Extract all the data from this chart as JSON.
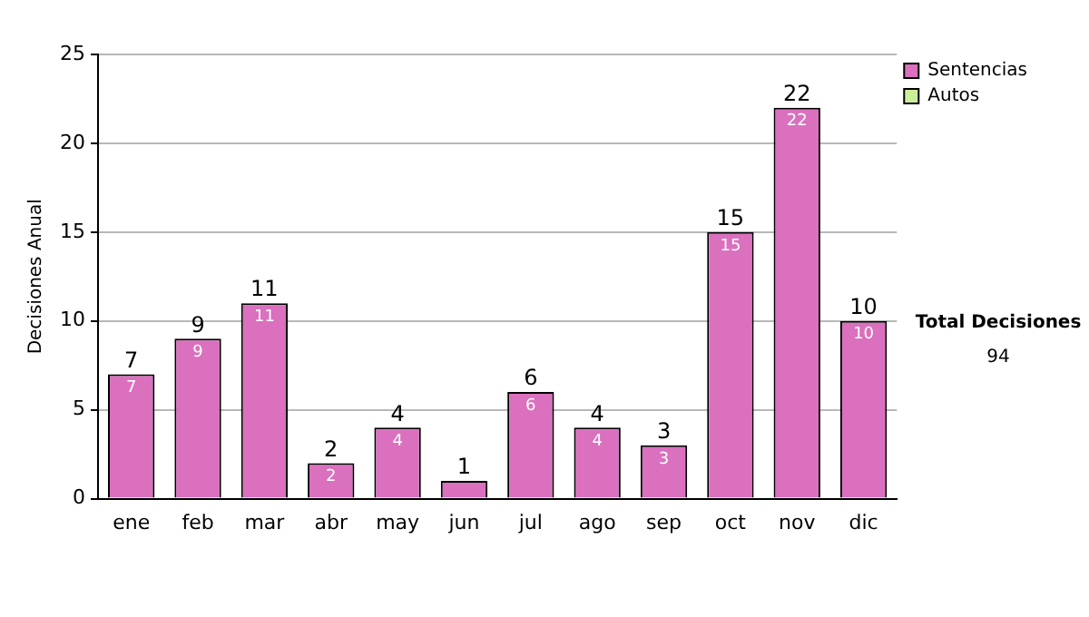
{
  "chart_data": {
    "type": "bar",
    "ylabel": "Decisiones Anual",
    "categories": [
      "ene",
      "feb",
      "mar",
      "abr",
      "may",
      "jun",
      "jul",
      "ago",
      "sep",
      "oct",
      "nov",
      "dic"
    ],
    "stacked": true,
    "series": [
      {
        "name": "Sentencias",
        "color": "#da70be",
        "values": [
          7,
          9,
          11,
          2,
          4,
          1,
          6,
          4,
          3,
          15,
          22,
          10
        ],
        "value_labels": [
          "7",
          "9",
          "11",
          "2",
          "4",
          null,
          "6",
          "4",
          "3",
          "15",
          "22",
          "10"
        ]
      },
      {
        "name": "Autos",
        "color": "#ccee99",
        "values": [
          0,
          0,
          0,
          0,
          0,
          0,
          0,
          0,
          0,
          0,
          0,
          0
        ]
      }
    ],
    "totals": [
      "7",
      "9",
      "11",
      "2",
      "4",
      "1",
      "6",
      "4",
      "3",
      "15",
      "22",
      "10"
    ],
    "ylim": [
      0,
      25
    ],
    "yticks": [
      0,
      5,
      10,
      15,
      20,
      25
    ],
    "grid": "y",
    "legend": "right",
    "annotations": [
      "Total Decisiones",
      "94"
    ]
  }
}
